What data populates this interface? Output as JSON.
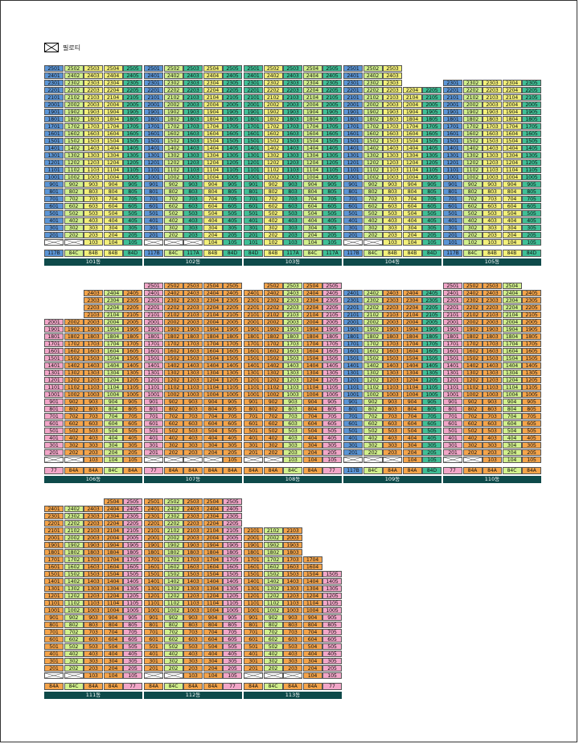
{
  "legend": {
    "label": "필로티"
  },
  "colors": {
    "84A": "#f5a44a",
    "84B": "#f3f07a",
    "84C": "#d2f08c",
    "84D": "#3fbf96",
    "117A": "#3fbf96",
    "117B": "#5b95d6",
    "77": "#f2a6c8",
    "piloti": "#ffffff",
    "label_bar": "#0e4a4a"
  },
  "buildings": [
    {
      "name": "101동",
      "top_floor": 25,
      "columns": [
        {
          "type": "117B",
          "top": 25,
          "bottom": 2
        },
        {
          "type": "84C",
          "top": 25,
          "bottom": 2
        },
        {
          "type": "84B",
          "top": 25,
          "bottom": 1
        },
        {
          "type": "84B",
          "top": 25,
          "bottom": 1
        },
        {
          "type": "84D",
          "top": 25,
          "bottom": 1
        }
      ]
    },
    {
      "name": "102동",
      "top_floor": 25,
      "columns": [
        {
          "type": "117B",
          "top": 25,
          "bottom": 2
        },
        {
          "type": "84C",
          "top": 25,
          "bottom": 2
        },
        {
          "type": "117A",
          "top": 25,
          "bottom": 2
        },
        {
          "type": "84B",
          "top": 25,
          "bottom": 1
        },
        {
          "type": "84D",
          "top": 25,
          "bottom": 1
        }
      ]
    },
    {
      "name": "103동",
      "top_floor": 25,
      "columns": [
        {
          "type": "84D",
          "top": 25,
          "bottom": 1
        },
        {
          "type": "84B",
          "top": 25,
          "bottom": 1
        },
        {
          "type": "117A",
          "top": 25,
          "bottom": 1
        },
        {
          "type": "84C",
          "top": 25,
          "bottom": 1
        },
        {
          "type": "117A",
          "top": 25,
          "bottom": 1
        }
      ]
    },
    {
      "name": "104동",
      "top_floor": 25,
      "columns": [
        {
          "type": "117B",
          "top": 25,
          "bottom": 2
        },
        {
          "type": "84C",
          "top": 25,
          "bottom": 2
        },
        {
          "type": "84B",
          "top": 25,
          "bottom": 1
        },
        {
          "type": "84B",
          "top": 22,
          "bottom": 1
        },
        {
          "type": "84D",
          "top": 22,
          "bottom": 1
        }
      ]
    },
    {
      "name": "105동",
      "top_floor": 23,
      "columns": [
        {
          "type": "117B",
          "top": 23,
          "bottom": 1
        },
        {
          "type": "84C",
          "top": 23,
          "bottom": 1
        },
        {
          "type": "84B",
          "top": 23,
          "bottom": 1
        },
        {
          "type": "84B",
          "top": 23,
          "bottom": 1
        },
        {
          "type": "84D",
          "top": 23,
          "bottom": 1
        }
      ]
    },
    {
      "name": "106동",
      "top_floor": 24,
      "columns": [
        {
          "type": "77",
          "top": 20,
          "bottom": 2
        },
        {
          "type": "84A",
          "top": 20,
          "bottom": 2
        },
        {
          "type": "84A",
          "top": 24,
          "bottom": 1
        },
        {
          "type": "84C",
          "top": 24,
          "bottom": 1
        },
        {
          "type": "84A",
          "top": 24,
          "bottom": 1
        }
      ]
    },
    {
      "name": "107동",
      "top_floor": 25,
      "columns": [
        {
          "type": "77",
          "top": 25,
          "bottom": 2
        },
        {
          "type": "84A",
          "top": 25,
          "bottom": 2
        },
        {
          "type": "84A",
          "top": 25,
          "bottom": 2
        },
        {
          "type": "84A",
          "top": 25,
          "bottom": 2
        },
        {
          "type": "84A",
          "top": 25,
          "bottom": 1
        }
      ]
    },
    {
      "name": "108동",
      "top_floor": 25,
      "columns": [
        {
          "type": "84A",
          "top": 24,
          "bottom": 2
        },
        {
          "type": "84A",
          "top": 25,
          "bottom": 2
        },
        {
          "type": "84C",
          "top": 25,
          "bottom": 1
        },
        {
          "type": "84A",
          "top": 25,
          "bottom": 1
        },
        {
          "type": "77",
          "top": 25,
          "bottom": 1
        }
      ]
    },
    {
      "name": "109동",
      "top_floor": 24,
      "columns": [
        {
          "type": "117B",
          "top": 24,
          "bottom": 2
        },
        {
          "type": "84C",
          "top": 24,
          "bottom": 2
        },
        {
          "type": "84A",
          "top": 24,
          "bottom": 2
        },
        {
          "type": "84A",
          "top": 24,
          "bottom": 1
        },
        {
          "type": "84D",
          "top": 24,
          "bottom": 1
        }
      ]
    },
    {
      "name": "110동",
      "top_floor": 25,
      "columns": [
        {
          "type": "77",
          "top": 25,
          "bottom": 2
        },
        {
          "type": "84A",
          "top": 25,
          "bottom": 2
        },
        {
          "type": "84A",
          "top": 25,
          "bottom": 1
        },
        {
          "type": "84C",
          "top": 25,
          "bottom": 1
        },
        {
          "type": "84A",
          "top": 24,
          "bottom": 1
        }
      ]
    },
    {
      "name": "111동",
      "top_floor": 25,
      "columns": [
        {
          "type": "84A",
          "top": 24,
          "bottom": 2
        },
        {
          "type": "84C",
          "top": 24,
          "bottom": 2
        },
        {
          "type": "84A",
          "top": 24,
          "bottom": 1
        },
        {
          "type": "84A",
          "top": 25,
          "bottom": 1
        },
        {
          "type": "77",
          "top": 25,
          "bottom": 1
        }
      ]
    },
    {
      "name": "112동",
      "top_floor": 25,
      "columns": [
        {
          "type": "84A",
          "top": 25,
          "bottom": 2
        },
        {
          "type": "84C",
          "top": 25,
          "bottom": 2
        },
        {
          "type": "84A",
          "top": 25,
          "bottom": 1
        },
        {
          "type": "84A",
          "top": 25,
          "bottom": 1
        },
        {
          "type": "77",
          "top": 25,
          "bottom": 1
        }
      ]
    },
    {
      "name": "113동",
      "top_floor": 21,
      "columns": [
        {
          "type": "84A",
          "top": 21,
          "bottom": 2
        },
        {
          "type": "84C",
          "top": 21,
          "bottom": 2
        },
        {
          "type": "84A",
          "top": 21,
          "bottom": 2
        },
        {
          "type": "84A",
          "top": 17,
          "bottom": 1
        },
        {
          "type": "77",
          "top": 15,
          "bottom": 1
        }
      ]
    }
  ]
}
